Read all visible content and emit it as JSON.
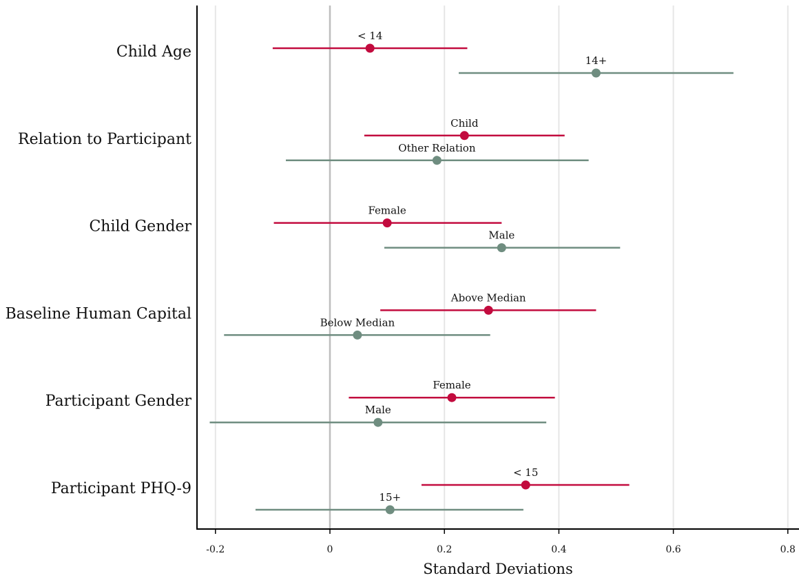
{
  "chart_data": {
    "type": "forest",
    "xlabel": "Standard Deviations",
    "xlim": [
      -0.21,
      0.82
    ],
    "x_ticks": [
      -0.2,
      0,
      0.2,
      0.4,
      0.6,
      0.8
    ],
    "x_tick_labels": [
      "-0.2",
      "0",
      "0.2",
      "0.4",
      "0.6",
      "0.8"
    ],
    "reference_line": 0,
    "grid": true,
    "colors": {
      "group_a": "#C20B3E",
      "group_b": "#6F8D80"
    },
    "categories": [
      {
        "label": "Child Age",
        "groups": [
          {
            "label": "< 14",
            "estimate": 0.07,
            "ci": [
              -0.1,
              0.24
            ],
            "color": "group_a"
          },
          {
            "label": "14+",
            "estimate": 0.465,
            "ci": [
              0.225,
              0.705
            ],
            "color": "group_b"
          }
        ]
      },
      {
        "label": "Relation to Participant",
        "groups": [
          {
            "label": "Child",
            "estimate": 0.235,
            "ci": [
              0.06,
              0.41
            ],
            "color": "group_a"
          },
          {
            "label": "Other Relation",
            "estimate": 0.187,
            "ci": [
              -0.077,
              0.452
            ],
            "color": "group_b"
          }
        ]
      },
      {
        "label": "Child Gender",
        "groups": [
          {
            "label": "Female",
            "estimate": 0.1,
            "ci": [
              -0.098,
              0.3
            ],
            "color": "group_a"
          },
          {
            "label": "Male",
            "estimate": 0.3,
            "ci": [
              0.095,
              0.507
            ],
            "color": "group_b"
          }
        ]
      },
      {
        "label": "Baseline Human Capital",
        "groups": [
          {
            "label": "Above Median",
            "estimate": 0.277,
            "ci": [
              0.088,
              0.465
            ],
            "color": "group_a"
          },
          {
            "label": "Below Median",
            "estimate": 0.048,
            "ci": [
              -0.185,
              0.28
            ],
            "color": "group_b"
          }
        ]
      },
      {
        "label": "Participant Gender",
        "groups": [
          {
            "label": "Female",
            "estimate": 0.213,
            "ci": [
              0.033,
              0.393
            ],
            "color": "group_a"
          },
          {
            "label": "Male",
            "estimate": 0.084,
            "ci": [
              -0.21,
              0.378
            ],
            "color": "group_b"
          }
        ]
      },
      {
        "label": "Participant PHQ-9",
        "groups": [
          {
            "label": "< 15",
            "estimate": 0.342,
            "ci": [
              0.16,
              0.523
            ],
            "color": "group_a"
          },
          {
            "label": "15+",
            "estimate": 0.105,
            "ci": [
              -0.13,
              0.338
            ],
            "color": "group_b"
          }
        ]
      }
    ]
  }
}
